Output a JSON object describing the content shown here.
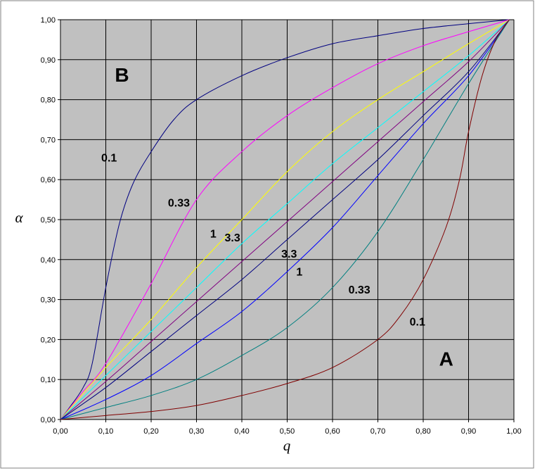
{
  "chart_data": {
    "type": "line",
    "title": "",
    "xlabel": "q",
    "ylabel": "α",
    "xlim": [
      0,
      1
    ],
    "ylim": [
      0,
      1
    ],
    "grid": true,
    "legend": "none",
    "x_ticks": [
      "0,00",
      "0,10",
      "0,20",
      "0,30",
      "0,40",
      "0,50",
      "0,60",
      "0,70",
      "0,80",
      "0,90",
      "1,00"
    ],
    "y_ticks": [
      "0,00",
      "0,10",
      "0,20",
      "0,30",
      "0,40",
      "0,50",
      "0,60",
      "0,70",
      "0,80",
      "0,90",
      "1,00"
    ],
    "colors": {
      "plot_background": "#c0c0c0",
      "grid": "#000000"
    },
    "series": [
      {
        "color": "#000080",
        "x": [
          0,
          0.02,
          0.05,
          0.07,
          0.1,
          0.13,
          0.16,
          0.2,
          0.25,
          0.3,
          0.4,
          0.5,
          0.6,
          0.7,
          0.8,
          0.9,
          0.99
        ],
        "y": [
          0,
          0.03,
          0.08,
          0.14,
          0.33,
          0.49,
          0.59,
          0.67,
          0.75,
          0.8,
          0.86,
          0.905,
          0.94,
          0.96,
          0.978,
          0.99,
          1.0
        ]
      },
      {
        "color": "#ff00ff",
        "x": [
          0,
          0.05,
          0.1,
          0.2,
          0.3,
          0.4,
          0.5,
          0.6,
          0.7,
          0.8,
          0.9,
          0.99
        ],
        "y": [
          0,
          0.07,
          0.14,
          0.34,
          0.55,
          0.67,
          0.76,
          0.83,
          0.89,
          0.935,
          0.97,
          1.0
        ]
      },
      {
        "color": "#ffff00",
        "x": [
          0,
          0.1,
          0.2,
          0.3,
          0.4,
          0.5,
          0.6,
          0.7,
          0.8,
          0.9,
          0.99
        ],
        "y": [
          0,
          0.13,
          0.25,
          0.38,
          0.5,
          0.62,
          0.72,
          0.8,
          0.87,
          0.94,
          1.0
        ]
      },
      {
        "color": "#00ffff",
        "x": [
          0,
          0.1,
          0.2,
          0.3,
          0.4,
          0.5,
          0.6,
          0.7,
          0.8,
          0.9,
          0.99
        ],
        "y": [
          0,
          0.11,
          0.22,
          0.33,
          0.44,
          0.54,
          0.64,
          0.73,
          0.82,
          0.91,
          1.0
        ]
      },
      {
        "color": "#800080",
        "x": [
          0,
          0.1,
          0.2,
          0.3,
          0.4,
          0.5,
          0.6,
          0.7,
          0.8,
          0.9,
          0.99
        ],
        "y": [
          0,
          0.095,
          0.195,
          0.295,
          0.395,
          0.495,
          0.595,
          0.695,
          0.795,
          0.895,
          1.0
        ]
      },
      {
        "color": "#000080",
        "x": [
          0,
          0.1,
          0.2,
          0.3,
          0.4,
          0.5,
          0.6,
          0.7,
          0.8,
          0.9,
          0.99
        ],
        "y": [
          0,
          0.08,
          0.17,
          0.26,
          0.35,
          0.45,
          0.55,
          0.65,
          0.76,
          0.87,
          1.0
        ]
      },
      {
        "color": "#0000ff",
        "x": [
          0,
          0.1,
          0.2,
          0.3,
          0.4,
          0.5,
          0.6,
          0.7,
          0.8,
          0.9,
          0.99
        ],
        "y": [
          0,
          0.05,
          0.11,
          0.19,
          0.27,
          0.37,
          0.48,
          0.61,
          0.74,
          0.86,
          1.0
        ]
      },
      {
        "color": "#008080",
        "x": [
          0,
          0.1,
          0.2,
          0.3,
          0.4,
          0.5,
          0.6,
          0.7,
          0.8,
          0.9,
          0.99
        ],
        "y": [
          0,
          0.03,
          0.06,
          0.1,
          0.16,
          0.23,
          0.33,
          0.47,
          0.65,
          0.84,
          1.0
        ]
      },
      {
        "color": "#800000",
        "x": [
          0,
          0.1,
          0.2,
          0.3,
          0.4,
          0.5,
          0.6,
          0.7,
          0.75,
          0.8,
          0.85,
          0.88,
          0.9,
          0.93,
          0.96,
          0.99
        ],
        "y": [
          0,
          0.01,
          0.02,
          0.035,
          0.06,
          0.09,
          0.13,
          0.2,
          0.26,
          0.35,
          0.48,
          0.6,
          0.72,
          0.86,
          0.95,
          1.0
        ]
      }
    ],
    "annotations": [
      {
        "text": "0.1",
        "x": 0.09,
        "y": 0.645
      },
      {
        "text": "0.33",
        "x": 0.237,
        "y": 0.533
      },
      {
        "text": "1",
        "x": 0.33,
        "y": 0.455
      },
      {
        "text": "3.3",
        "x": 0.362,
        "y": 0.445
      },
      {
        "text": "3.3",
        "x": 0.487,
        "y": 0.405
      },
      {
        "text": "1",
        "x": 0.52,
        "y": 0.36
      },
      {
        "text": "0.33",
        "x": 0.635,
        "y": 0.315
      },
      {
        "text": "0.1",
        "x": 0.77,
        "y": 0.235
      },
      {
        "text": "B",
        "x": 0.12,
        "y": 0.845,
        "big": true
      },
      {
        "text": "A",
        "x": 0.835,
        "y": 0.135,
        "big": true
      }
    ]
  }
}
